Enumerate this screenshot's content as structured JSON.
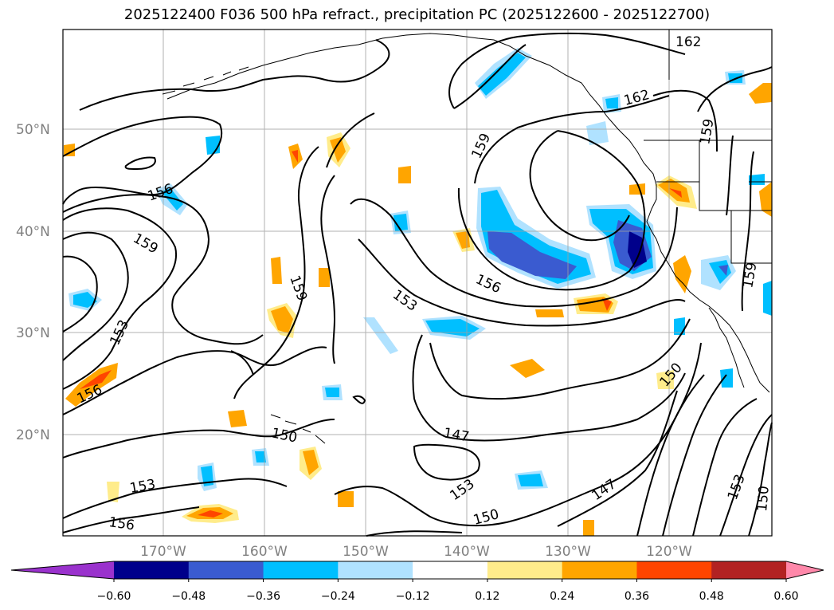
{
  "title": "2025122400 F036 500 hPa refract., precipitation PC (2025122600 - 2025122700)",
  "map": {
    "lat_labels": [
      "50°N",
      "40°N",
      "30°N",
      "20°N"
    ],
    "lon_labels": [
      "170°W",
      "160°W",
      "150°W",
      "140°W",
      "130°W",
      "120°W"
    ],
    "contour_labels": [
      "162",
      "162",
      "159",
      "159",
      "159",
      "159",
      "159",
      "156",
      "156",
      "156",
      "156",
      "153",
      "153",
      "153",
      "153",
      "153",
      "150",
      "150",
      "150",
      "150",
      "147",
      "147",
      "156"
    ]
  },
  "colorbar": {
    "ticks": [
      "−0.60",
      "−0.48",
      "−0.36",
      "−0.24",
      "−0.12",
      "0.12",
      "0.24",
      "0.36",
      "0.48",
      "0.60"
    ],
    "colors": [
      "#9a32cd",
      "#00008b",
      "#3a5bd0",
      "#00bfff",
      "#b0e2ff",
      "#ffffff",
      "#ffec8b",
      "#ffa500",
      "#ff4500",
      "#b22222",
      "#ff88aa"
    ]
  },
  "colors": {
    "contour": "#000000",
    "grid": "#a0a0a0",
    "coast": "#000000"
  }
}
